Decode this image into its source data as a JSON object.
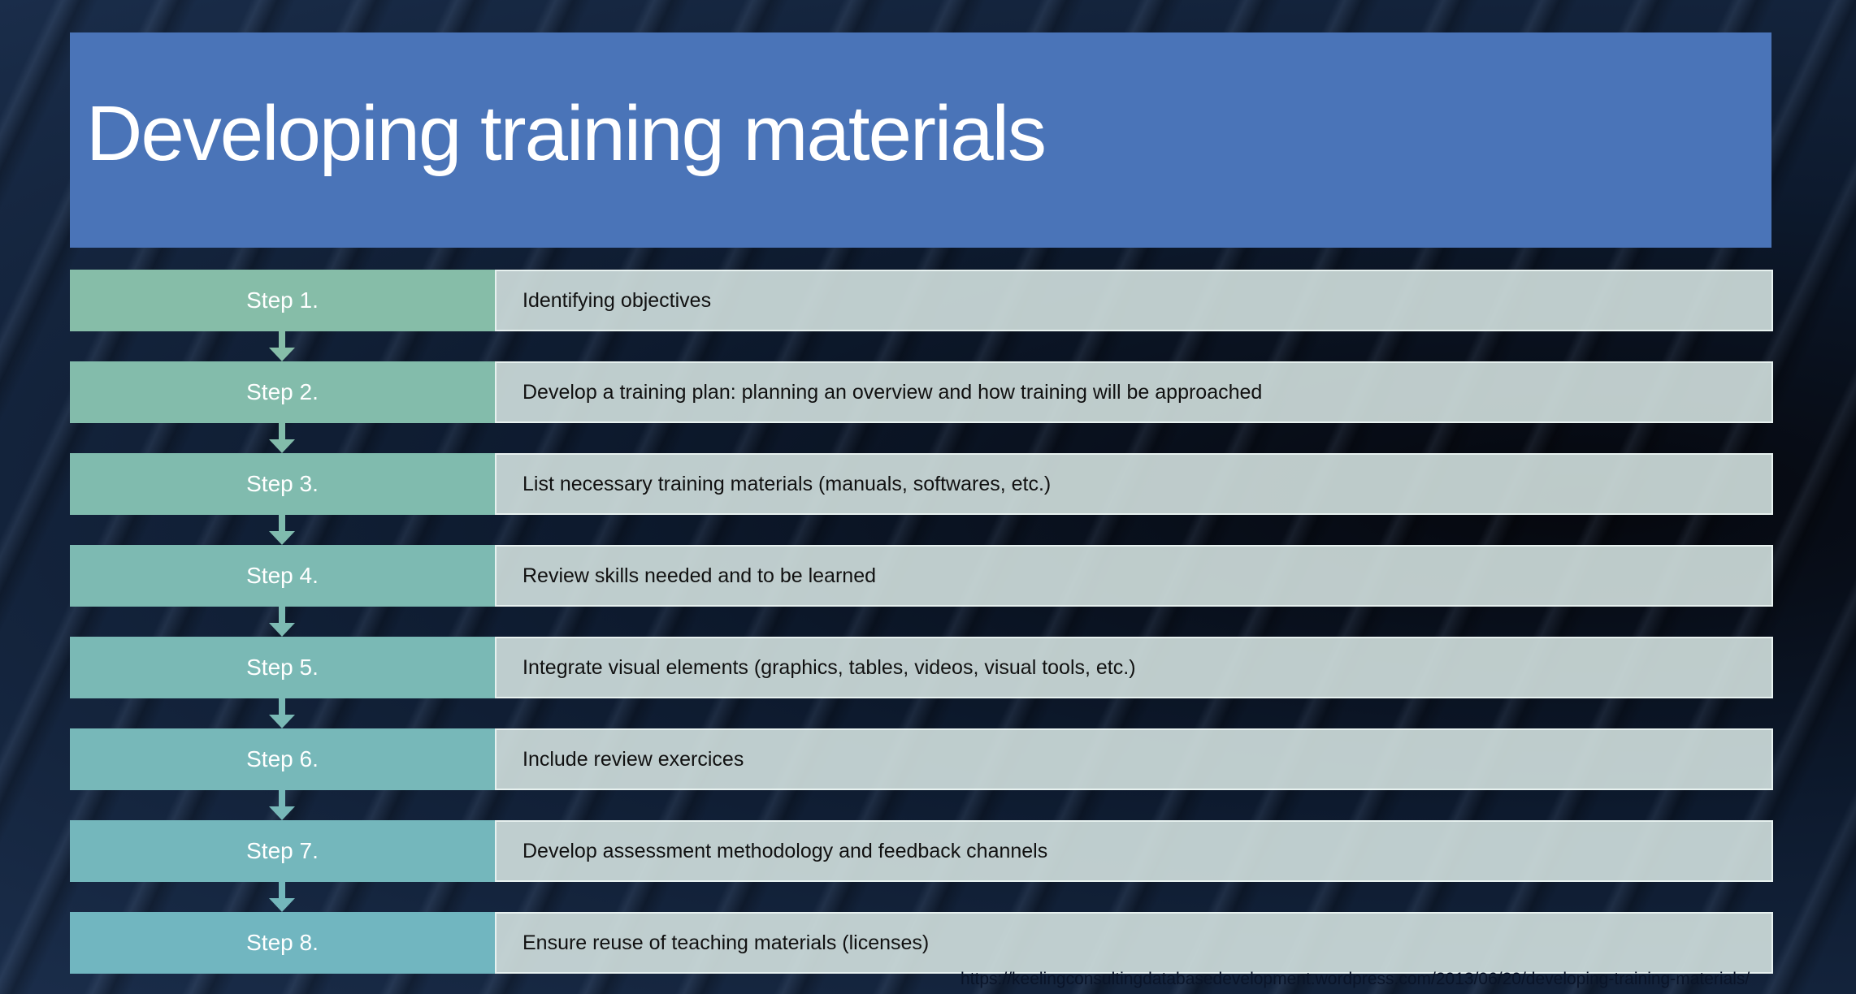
{
  "slide": {
    "title": "Developing training materials",
    "steps": [
      {
        "label": "Step 1.",
        "text": "Identifying objectives",
        "color": "#86bda8"
      },
      {
        "label": "Step 2.",
        "text": "Develop a training plan: planning an overview and how training will be approached",
        "color": "#83bcab"
      },
      {
        "label": "Step 3.",
        "text": "List necessary training materials (manuals, softwares, etc.)",
        "color": "#80bbae"
      },
      {
        "label": "Step 4.",
        "text": "Review skills needed and to be learned",
        "color": "#7dbab2"
      },
      {
        "label": "Step 5.",
        "text": "Integrate visual elements (graphics, tables, videos, visual tools, etc.)",
        "color": "#7ab9b5"
      },
      {
        "label": "Step 6.",
        "text": "Include review exercices",
        "color": "#77b8b9"
      },
      {
        "label": "Step 7.",
        "text": "Develop assessment methodology and feedback channels",
        "color": "#74b7bc"
      },
      {
        "label": "Step 8.",
        "text": "Ensure reuse of teaching materials (licenses)",
        "color": "#71b6c0"
      }
    ],
    "source_url": "https://keelingconsultingdatabasedevelopment.wordpress.com/2013/06/20/developing-training-materials/",
    "title_bar_color": "#4a74b8"
  }
}
